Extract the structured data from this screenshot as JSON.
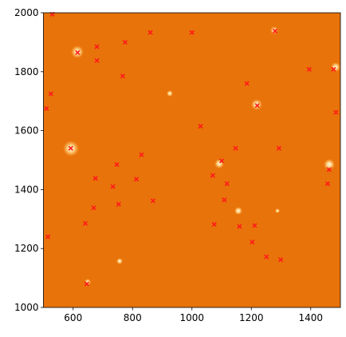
{
  "chart_data": {
    "type": "scatter",
    "marker": "x",
    "color": "#ff1a1a",
    "background_color": "#e8730a",
    "xlim": [
      500,
      1500
    ],
    "ylim": [
      1000,
      2000
    ],
    "xticks": [
      600,
      800,
      1000,
      1200,
      1400
    ],
    "yticks": [
      1000,
      1200,
      1400,
      1600,
      1800,
      2000
    ],
    "x": [
      530,
      615,
      680,
      680,
      775,
      860,
      1000,
      1280,
      767,
      525,
      510,
      1185,
      1220,
      1395,
      1477,
      1485,
      1029,
      1147,
      1293,
      592,
      830,
      747,
      1100,
      1070,
      1118,
      734,
      675,
      813,
      1462,
      1457,
      869,
      1109,
      753,
      669,
      641,
      1075,
      1160,
      1211,
      1203,
      515,
      1251,
      1299,
      646
    ],
    "y": [
      1995,
      1865,
      1885,
      1838,
      1900,
      1933,
      1933,
      1938,
      1785,
      1725,
      1675,
      1760,
      1685,
      1808,
      1808,
      1662,
      1615,
      1540,
      1540,
      1540,
      1518,
      1485,
      1497,
      1448,
      1420,
      1410,
      1438,
      1435,
      1468,
      1420,
      1362,
      1365,
      1350,
      1338,
      1285,
      1282,
      1275,
      1278,
      1222,
      1240,
      1172,
      1162,
      1080
    ]
  }
}
